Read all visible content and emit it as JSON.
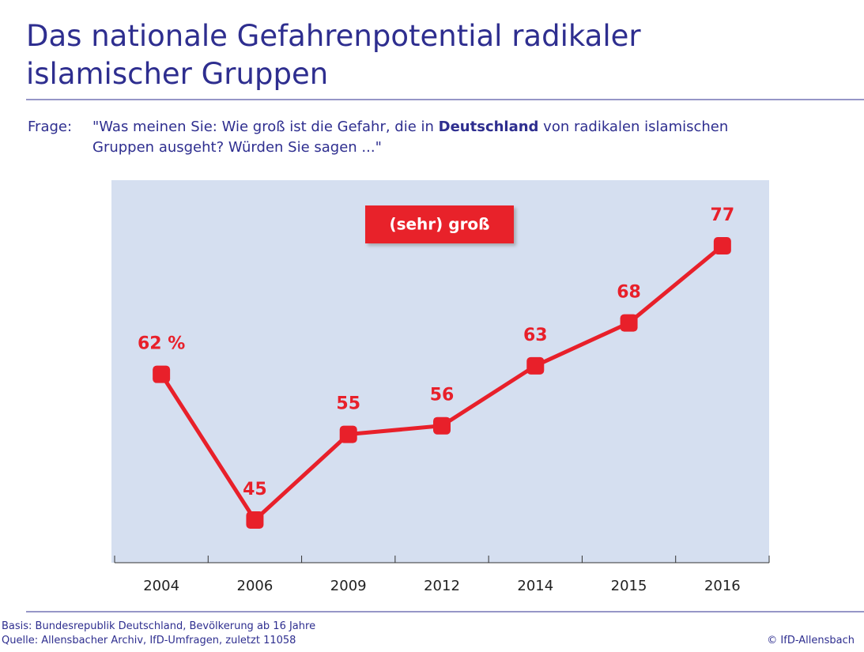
{
  "header": {
    "title": "Das nationale Gefahrenpotential radikaler islamischer Gruppen"
  },
  "question": {
    "label": "Frage:",
    "text_before": "\"Was meinen Sie: Wie groß ist die Gefahr, die in ",
    "text_bold": "Deutschland",
    "text_after": " von radikalen islamischen Gruppen ausgeht? Würden Sie sagen ...\""
  },
  "chart_data": {
    "type": "line",
    "categories": [
      "2004",
      "2006",
      "2009",
      "2012",
      "2014",
      "2015",
      "2016"
    ],
    "series": [
      {
        "name": "(sehr) groß",
        "color": "#e8202a",
        "values": [
          62,
          45,
          55,
          56,
          63,
          68,
          77
        ],
        "value_labels": [
          "62 %",
          "45",
          "55",
          "56",
          "63",
          "68",
          "77"
        ]
      }
    ]
  },
  "footer": {
    "basis": "Basis: Bundesrepublik Deutschland, Bevölkerung ab 16 Jahre",
    "source": "Quelle: Allensbacher Archiv, IfD-Umfragen, zuletzt 11058",
    "copyright": "© IfD-Allensbach"
  }
}
